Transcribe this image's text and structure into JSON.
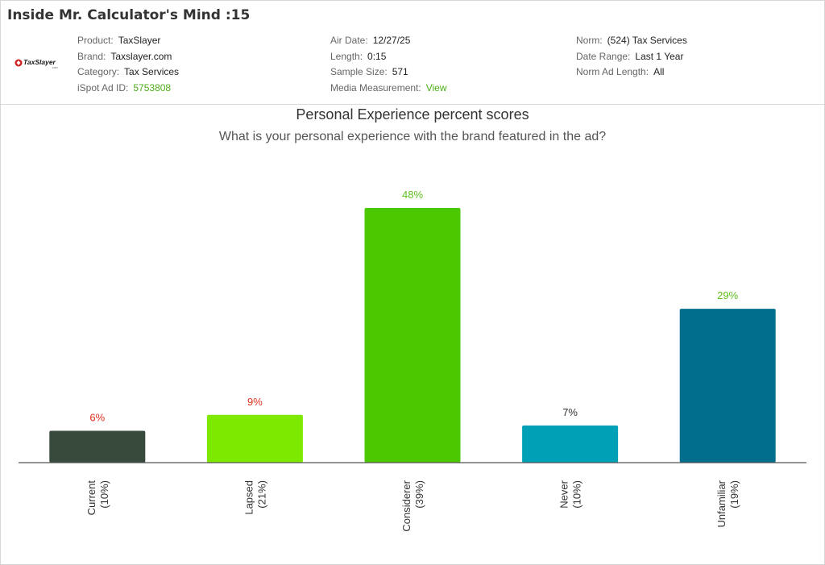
{
  "header": {
    "title": "Inside Mr. Calculator's Mind :15",
    "logo_text": "TaxSlayer",
    "col1": [
      {
        "key": "Product:",
        "value": "TaxSlayer"
      },
      {
        "key": "Brand:",
        "value": "Taxslayer.com"
      },
      {
        "key": "Category:",
        "value": "Tax Services"
      },
      {
        "key": "iSpot Ad ID:",
        "value": "5753808"
      }
    ],
    "col2": [
      {
        "key": "Air Date:",
        "value": "12/27/25"
      },
      {
        "key": "Length:",
        "value": "0:15"
      },
      {
        "key": "Sample Size:",
        "value": "571"
      },
      {
        "key": "Media Measurement:",
        "value": "View"
      }
    ],
    "col3": [
      {
        "key": "Norm:",
        "value": "(524) Tax Services"
      },
      {
        "key": "Date Range:",
        "value": "Last 1 Year"
      },
      {
        "key": "Norm Ad Length:",
        "value": "All"
      }
    ]
  },
  "colors": {
    "link_green": "#4cae17",
    "label_red": "#e0301e",
    "label_green": "#5fbf1f",
    "label_dark": "#333333"
  },
  "chart_data": {
    "type": "bar",
    "title": "Personal Experience percent scores",
    "subtitle": "What is your personal experience with the brand featured in the ad?",
    "categories": [
      "Current",
      "Lapsed",
      "Considerer",
      "Never",
      "Unfamiliar"
    ],
    "norms": [
      "(10%)",
      "(21%)",
      "(39%)",
      "(10%)",
      "(19%)"
    ],
    "values": [
      6,
      9,
      48,
      7,
      29
    ],
    "value_labels": [
      "6%",
      "9%",
      "48%",
      "7%",
      "29%"
    ],
    "bar_colors": [
      "#374a3c",
      "#7de800",
      "#4cc800",
      "#00a0b7",
      "#006e8c"
    ],
    "label_colors": [
      "#e0301e",
      "#e0301e",
      "#5fbf1f",
      "#333333",
      "#5fbf1f"
    ],
    "ylim": [
      0,
      48
    ]
  }
}
